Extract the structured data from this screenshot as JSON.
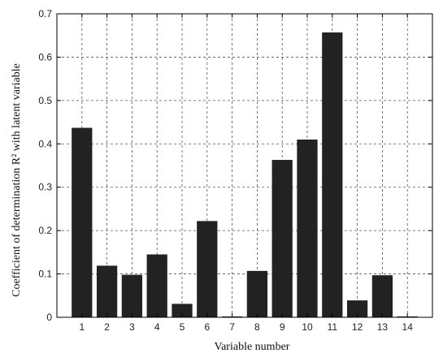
{
  "chart_data": {
    "type": "bar",
    "title": "",
    "xlabel": "Variable number",
    "ylabel": "Coefficient of determination R² with latent variable",
    "categories": [
      "1",
      "2",
      "3",
      "4",
      "5",
      "6",
      "7",
      "8",
      "9",
      "10",
      "11",
      "12",
      "13",
      "14"
    ],
    "values": [
      0.437,
      0.119,
      0.098,
      0.145,
      0.031,
      0.222,
      0.002,
      0.107,
      0.363,
      0.41,
      0.657,
      0.039,
      0.097,
      0.002
    ],
    "ylim": [
      0,
      0.7
    ],
    "yticks": [
      "0",
      "0.1",
      "0.2",
      "0.3",
      "0.4",
      "0.5",
      "0.6",
      "0.7"
    ],
    "grid": true,
    "bar_color": "#222222"
  }
}
